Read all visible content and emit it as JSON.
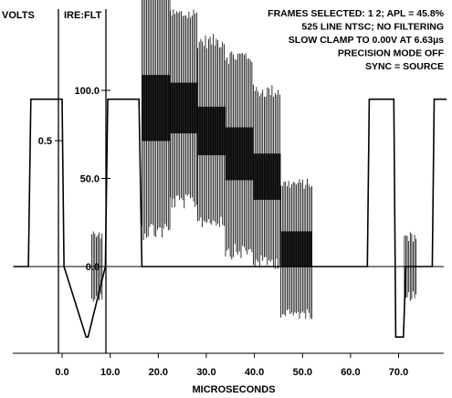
{
  "chart_data": {
    "type": "line",
    "title": "",
    "axes": {
      "volts_label": "VOLTS",
      "ire_label": "IRE:FLT",
      "xlabel": "MICROSECONDS"
    },
    "info_lines": [
      "FRAMES SELECTED: 1 2; APL = 45.8%",
      "525 LINE NTSC; NO FILTERING",
      "SLOW CLAMP TO 0.00V AT 6.63µs",
      "PRECISION MODE OFF",
      "SYNC = SOURCE"
    ],
    "xlim": [
      -10,
      80
    ],
    "ylim_ire": [
      -55,
      145
    ],
    "x_ticks": [
      {
        "value": 0,
        "label": "0.0"
      },
      {
        "value": 10,
        "label": "10.0"
      },
      {
        "value": 20,
        "label": "20.0"
      },
      {
        "value": 30,
        "label": "30.0"
      },
      {
        "value": 40,
        "label": "40.0"
      },
      {
        "value": 50,
        "label": "50.0"
      },
      {
        "value": 60,
        "label": "60.0"
      },
      {
        "value": 70,
        "label": "70.0"
      }
    ],
    "ire_ticks": [
      {
        "value": 0,
        "label": "0.0"
      },
      {
        "value": 50,
        "label": "50.0"
      },
      {
        "value": 100,
        "label": "100.0"
      }
    ],
    "volt_ticks": [
      {
        "value": 0.5,
        "label": "0.5"
      }
    ],
    "waveform": {
      "x": [
        -10,
        -7,
        -6.5,
        0,
        0.4,
        5,
        5.4,
        9,
        9.5,
        16,
        16.6,
        63.5,
        63.9,
        69,
        69.4,
        71,
        71.5,
        77,
        77.4,
        80
      ],
      "y": [
        0,
        0,
        95,
        95,
        0,
        -40,
        -40,
        0,
        95,
        95,
        0,
        0,
        95,
        95,
        -40,
        -40,
        0,
        0,
        95,
        95
      ]
    },
    "staircase": {
      "x_start": [
        16.6,
        22.5,
        28.2,
        34,
        39.8,
        45.5
      ],
      "x_end": [
        22.5,
        28.2,
        34,
        39.8,
        45.5,
        52
      ],
      "luma_ire": [
        90,
        90,
        77,
        64,
        51,
        10
      ],
      "chroma_pp_ire": [
        150,
        115,
        110,
        120,
        105,
        80
      ]
    },
    "burst": [
      {
        "x_start": 6.2,
        "x_end": 8.6,
        "center_ire": 0,
        "pp_ire": 40
      },
      {
        "x_start": 71.2,
        "x_end": 73.8,
        "center_ire": 0,
        "pp_ire": 40
      }
    ]
  }
}
